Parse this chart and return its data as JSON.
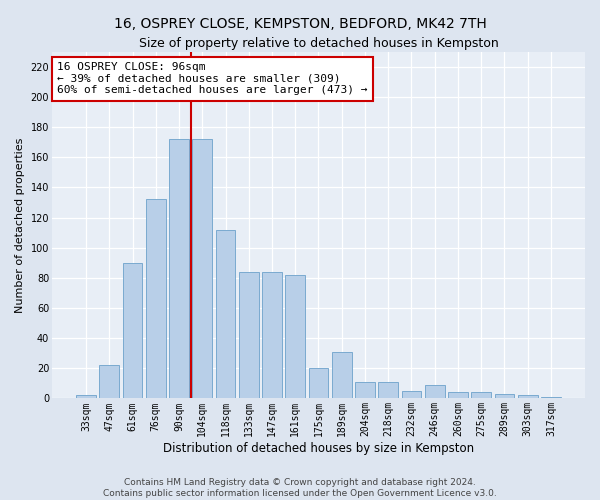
{
  "title": "16, OSPREY CLOSE, KEMPSTON, BEDFORD, MK42 7TH",
  "subtitle": "Size of property relative to detached houses in Kempston",
  "xlabel": "Distribution of detached houses by size in Kempston",
  "ylabel": "Number of detached properties",
  "categories": [
    "33sqm",
    "47sqm",
    "61sqm",
    "76sqm",
    "90sqm",
    "104sqm",
    "118sqm",
    "133sqm",
    "147sqm",
    "161sqm",
    "175sqm",
    "189sqm",
    "204sqm",
    "218sqm",
    "232sqm",
    "246sqm",
    "260sqm",
    "275sqm",
    "289sqm",
    "303sqm",
    "317sqm"
  ],
  "values": [
    2,
    22,
    90,
    132,
    172,
    172,
    112,
    84,
    84,
    82,
    20,
    31,
    11,
    11,
    5,
    9,
    4,
    4,
    3,
    2,
    1
  ],
  "bar_color": "#b8cfe8",
  "bar_edge_color": "#7aaad0",
  "vline_color": "#cc0000",
  "vline_x_index": 4,
  "annotation_text": "16 OSPREY CLOSE: 96sqm\n← 39% of detached houses are smaller (309)\n60% of semi-detached houses are larger (473) →",
  "annotation_box_facecolor": "#ffffff",
  "annotation_box_edgecolor": "#cc0000",
  "ylim": [
    0,
    230
  ],
  "yticks": [
    0,
    20,
    40,
    60,
    80,
    100,
    120,
    140,
    160,
    180,
    200,
    220
  ],
  "bg_color": "#dde5f0",
  "plot_bg_color": "#e8eef6",
  "footer_line1": "Contains HM Land Registry data © Crown copyright and database right 2024.",
  "footer_line2": "Contains public sector information licensed under the Open Government Licence v3.0.",
  "title_fontsize": 10,
  "subtitle_fontsize": 9,
  "xlabel_fontsize": 8.5,
  "ylabel_fontsize": 8,
  "tick_fontsize": 7,
  "footer_fontsize": 6.5,
  "annotation_fontsize": 8
}
